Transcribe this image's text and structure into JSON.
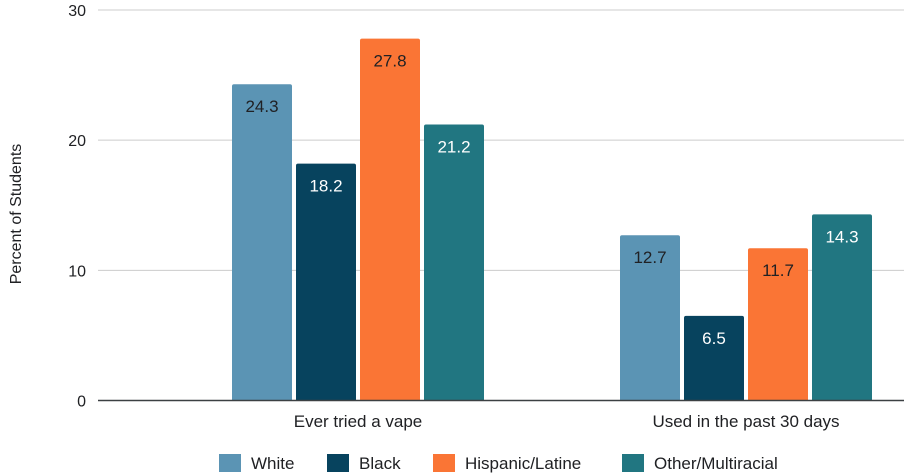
{
  "chart_data": {
    "type": "bar",
    "title": "",
    "xlabel": "",
    "ylabel": "Percent of Students",
    "categories": [
      "Ever tried a vape",
      "Used in the past 30 days"
    ],
    "series": [
      {
        "name": "White",
        "values": [
          24.3,
          12.7
        ],
        "color": "#5b94b4",
        "label_color": "#202124"
      },
      {
        "name": "Black",
        "values": [
          18.2,
          6.5
        ],
        "color": "#07435e",
        "label_color": "#ffffff"
      },
      {
        "name": "Hispanic/Latine",
        "values": [
          27.8,
          11.7
        ],
        "color": "#fa7535",
        "label_color": "#202124"
      },
      {
        "name": "Other/Multiracial",
        "values": [
          21.2,
          14.3
        ],
        "color": "#217681",
        "label_color": "#ffffff"
      }
    ],
    "ylim": [
      0,
      30
    ],
    "yticks": [
      0,
      10,
      20,
      30
    ],
    "grid": true,
    "legend_position": "bottom"
  }
}
